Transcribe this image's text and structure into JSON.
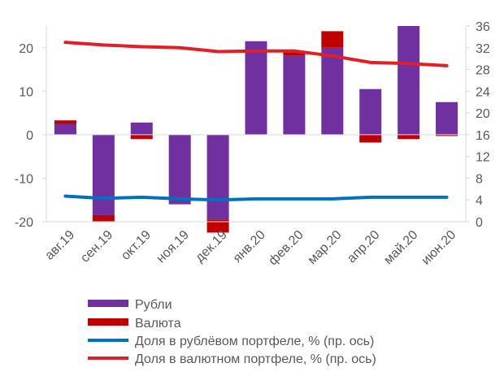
{
  "chart_data": {
    "type": "bar",
    "categories": [
      "авг.19",
      "сен.19",
      "окт.19",
      "ноя.19",
      "дек.19",
      "янв.20",
      "фев.20",
      "мар.20",
      "апр.20",
      "май.20",
      "июн.20"
    ],
    "series": [
      {
        "name": "Рубли",
        "kind": "bar",
        "axis": "left",
        "color": "#7030a0",
        "values": [
          2.5,
          -18.5,
          2.8,
          -16.0,
          -19.5,
          21.5,
          18.2,
          20.0,
          10.5,
          25.0,
          7.5
        ]
      },
      {
        "name": "Валюта",
        "kind": "bar",
        "axis": "left",
        "color": "#c00000",
        "values": [
          0.8,
          -1.5,
          -1.0,
          0.0,
          -3.0,
          0.0,
          0.8,
          3.8,
          -1.8,
          -1.0,
          -0.3
        ]
      },
      {
        "name": "Доля в рублёвом портфеле, % (пр. ось)",
        "kind": "line",
        "axis": "right",
        "color": "#0070c0",
        "values": [
          4.7,
          4.3,
          4.5,
          4.2,
          4.0,
          4.2,
          4.2,
          4.2,
          4.5,
          4.5,
          4.5
        ]
      },
      {
        "name": "Доля в валютном портфеле,  % (пр. ось)",
        "kind": "line",
        "axis": "right",
        "color": "#e41e26",
        "values": [
          33.0,
          32.5,
          32.2,
          32.0,
          31.3,
          31.4,
          31.4,
          30.5,
          29.3,
          29.1,
          28.7
        ]
      }
    ],
    "y_left": {
      "min": -20,
      "max": 25,
      "ticks": [
        -20,
        -10,
        0,
        10,
        20
      ]
    },
    "y_right": {
      "min": 0,
      "max": 36,
      "ticks": [
        0,
        4,
        8,
        12,
        16,
        20,
        24,
        28,
        32,
        36
      ]
    },
    "legend": "bottom",
    "grid": false
  }
}
